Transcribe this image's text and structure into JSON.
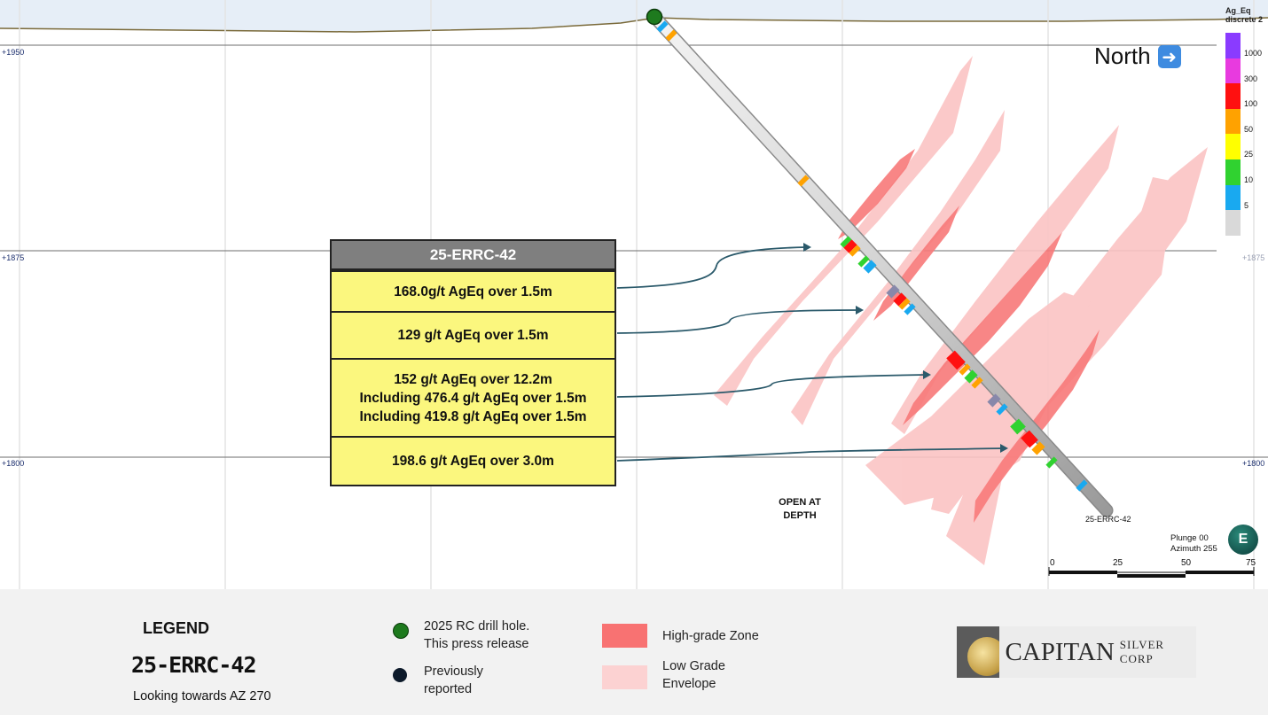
{
  "section": {
    "elevations": {
      "e1950": "+1950",
      "e1875": "+1875",
      "e1800": "+1800"
    },
    "north_label": "North",
    "north_icon": "right-arrow-icon",
    "scale_title": [
      "Ag_Eq",
      "discrete 2"
    ],
    "scale": [
      {
        "label": "1000",
        "color": "#8a3bff"
      },
      {
        "label": "300",
        "color": "#e83adf"
      },
      {
        "label": "100",
        "color": "#ff1010"
      },
      {
        "label": "50",
        "color": "#ffa200"
      },
      {
        "label": "25",
        "color": "#ffff00"
      },
      {
        "label": "10",
        "color": "#30d230"
      },
      {
        "label": "5",
        "color": "#19a9f0"
      },
      {
        "label": "",
        "color": "#d9d9d9"
      }
    ],
    "open_at_depth": [
      "OPEN AT",
      "DEPTH"
    ],
    "hole_label": "25-ERRC-42",
    "plunge": "Plunge 00",
    "azimuth": "Azimuth 255",
    "compass_letter": "E",
    "scalebar_labels": [
      "0",
      "25",
      "50",
      "75"
    ]
  },
  "callout": {
    "title": "25-ERRC-42",
    "rows": [
      [
        "168.0g/t AgEq over 1.5m"
      ],
      [
        "129 g/t AgEq over 1.5m"
      ],
      [
        "152 g/t AgEq over 12.2m",
        "Including  476.4 g/t AgEq over 1.5m",
        "Including  419.8 g/t AgEq over 1.5m"
      ],
      [
        "198.6 g/t AgEq over 3.0m"
      ]
    ]
  },
  "legend": {
    "title": "LEGEND",
    "hole": "25-ERRC-42",
    "looking": "Looking towards AZ 270",
    "items": [
      {
        "label": "2025 RC drill hole.",
        "label2": "This press release",
        "color": "#1e7a1e"
      },
      {
        "label": "Previously",
        "label2": "reported",
        "color": "#0d1a2a"
      }
    ],
    "zones": [
      {
        "label": "High-grade Zone",
        "label2": "",
        "color": "#f87272"
      },
      {
        "label": "Low Grade",
        "label2": "Envelope",
        "color": "#fcd2d2"
      }
    ],
    "logo_name": "CAPITAN",
    "logo_sub": "SILVER CORP"
  }
}
